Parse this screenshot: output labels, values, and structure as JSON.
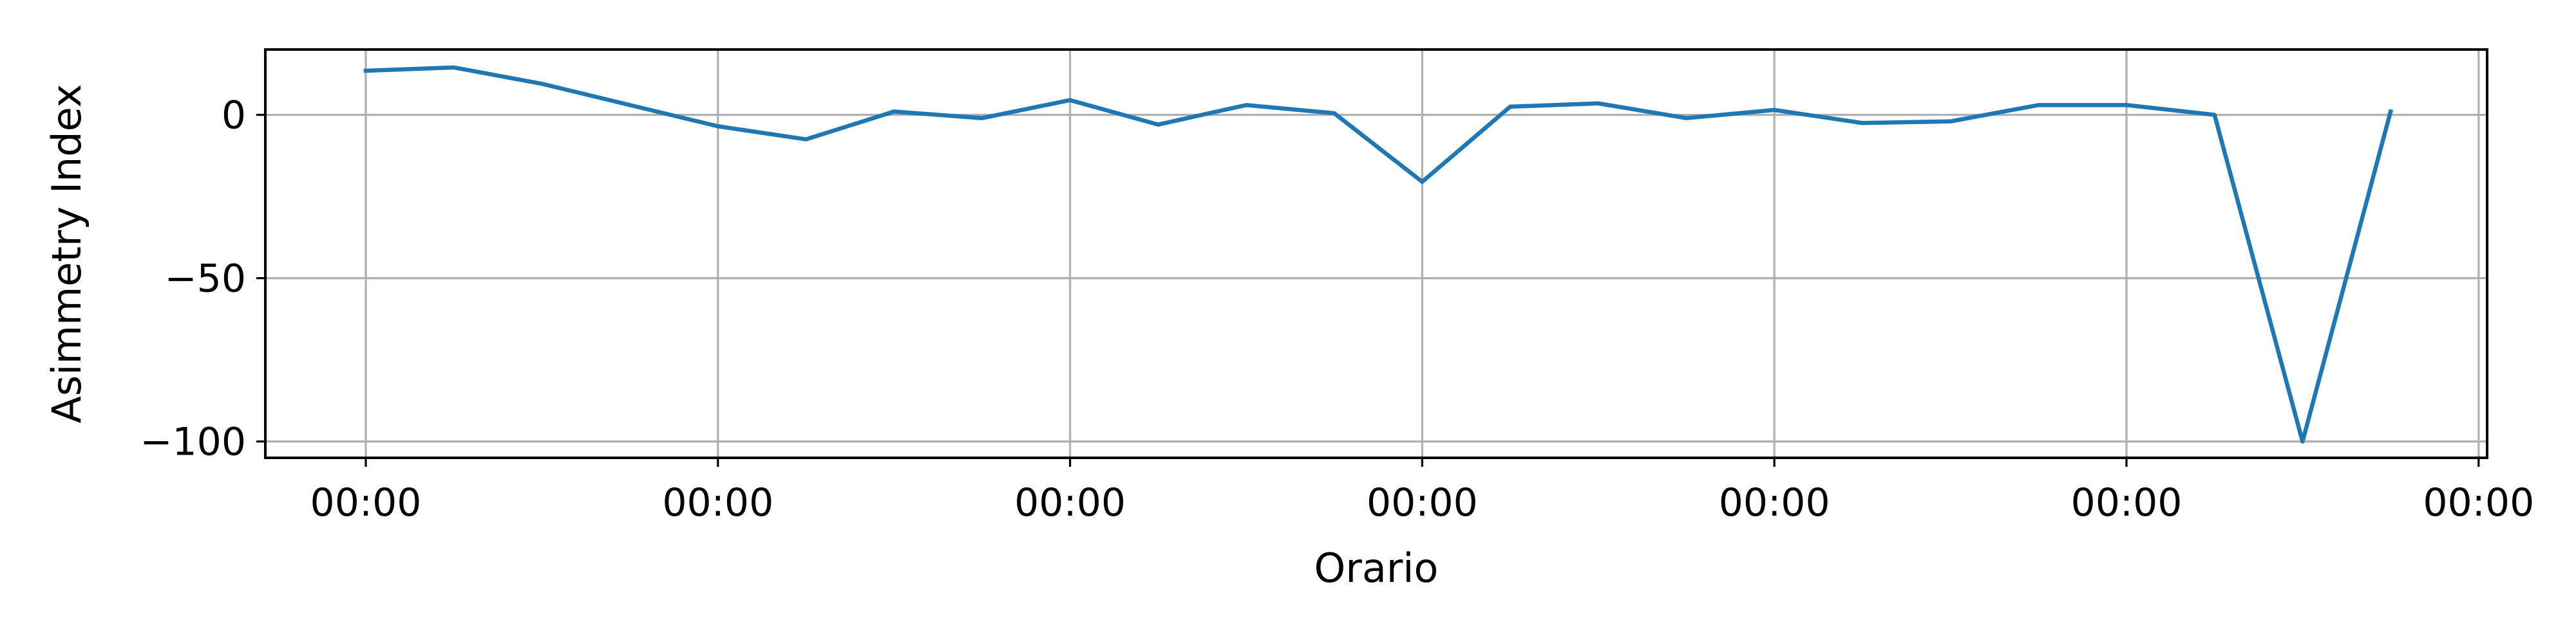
{
  "chart_data": {
    "type": "line",
    "title": "",
    "xlabel": "Orario",
    "ylabel": "Asimmetry Index",
    "x_tick_labels": [
      "00:00",
      "00:00",
      "00:00",
      "00:00",
      "00:00",
      "00:00",
      "00:00"
    ],
    "y_ticks": [
      0,
      -50,
      -100
    ],
    "y_tick_labels": [
      "0",
      "−50",
      "−100"
    ],
    "ylim": [
      -105,
      20
    ],
    "grid": true,
    "series": [
      {
        "color": "#1f77b4",
        "values": [
          13.5,
          14.5,
          9.5,
          3,
          -3.5,
          -7.5,
          1,
          -1,
          4.5,
          -3,
          3,
          0.5,
          -20.5,
          2.5,
          3.5,
          -1,
          1.5,
          -2.5,
          -2,
          3,
          3,
          0,
          -100,
          1
        ]
      }
    ]
  }
}
